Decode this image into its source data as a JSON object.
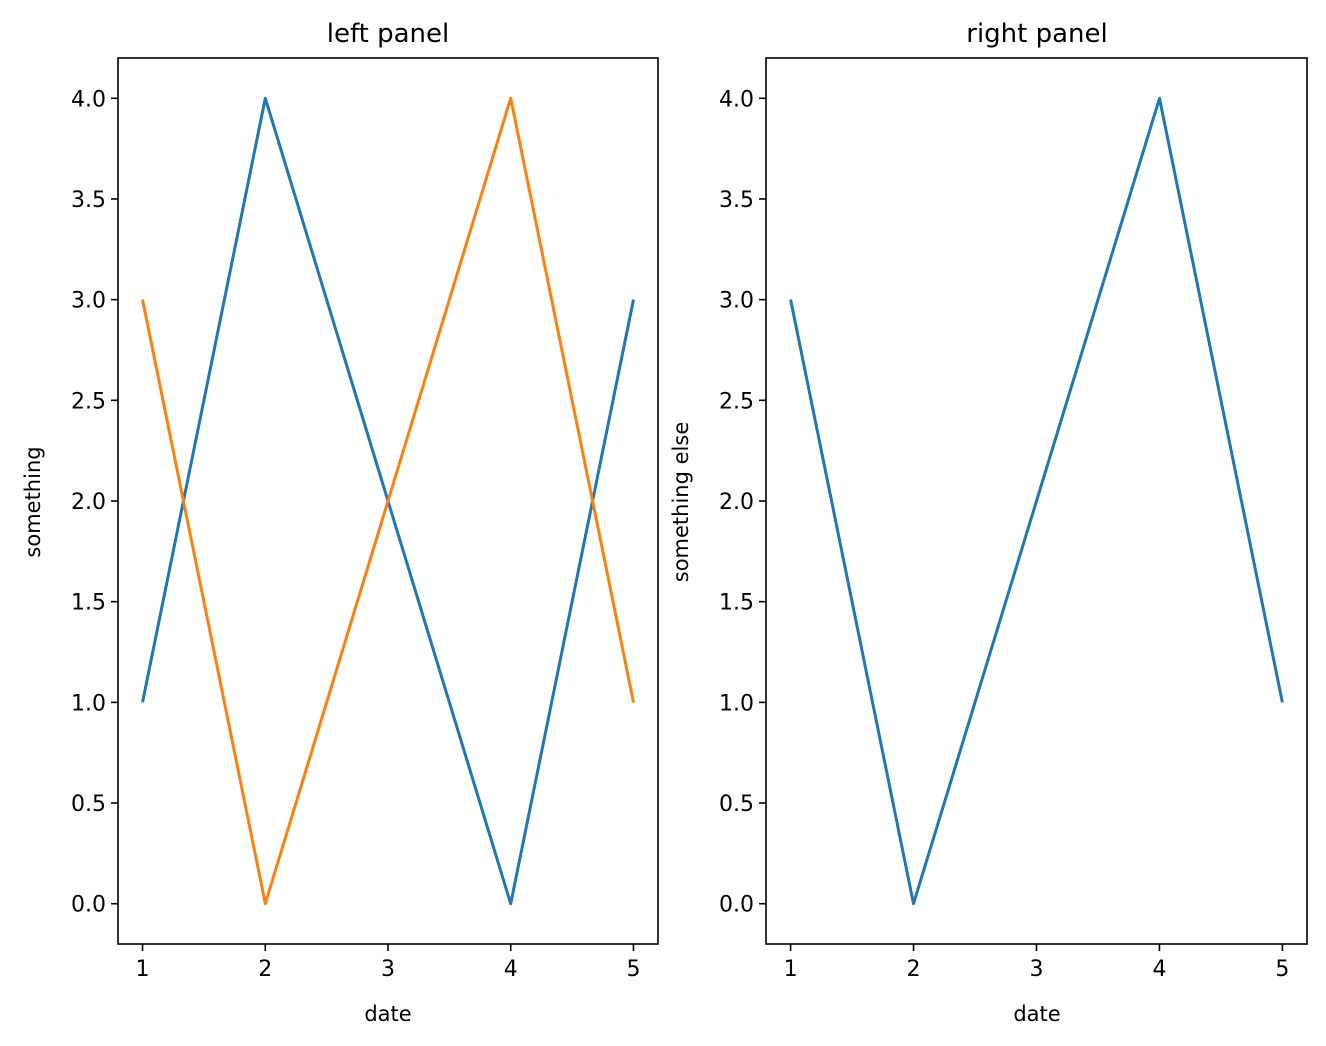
{
  "chart_data": [
    {
      "type": "line",
      "title": "left panel",
      "xlabel": "date",
      "ylabel": "something",
      "x": [
        1,
        2,
        3,
        4,
        5
      ],
      "xticks": [
        "1",
        "2",
        "3",
        "4",
        "5"
      ],
      "yticks": [
        "0.0",
        "0.5",
        "1.0",
        "1.5",
        "2.0",
        "2.5",
        "3.0",
        "3.5",
        "4.0"
      ],
      "xlim": [
        0.8,
        5.2
      ],
      "ylim": [
        -0.2,
        4.2
      ],
      "grid": false,
      "series": [
        {
          "values": [
            1,
            4,
            2,
            0,
            3
          ],
          "color": "#1f77b4"
        },
        {
          "values": [
            3,
            0,
            2,
            4,
            1
          ],
          "color": "#ff7f0e"
        }
      ]
    },
    {
      "type": "line",
      "title": "right panel",
      "xlabel": "date",
      "ylabel": "something else",
      "x": [
        1,
        2,
        3,
        4,
        5
      ],
      "xticks": [
        "1",
        "2",
        "3",
        "4",
        "5"
      ],
      "yticks": [
        "0.0",
        "0.5",
        "1.0",
        "1.5",
        "2.0",
        "2.5",
        "3.0",
        "3.5",
        "4.0"
      ],
      "xlim": [
        0.8,
        5.2
      ],
      "ylim": [
        -0.2,
        4.2
      ],
      "grid": false,
      "series": [
        {
          "values": [
            3,
            0,
            2,
            4,
            1
          ],
          "color": "#1f77b4"
        }
      ]
    }
  ]
}
